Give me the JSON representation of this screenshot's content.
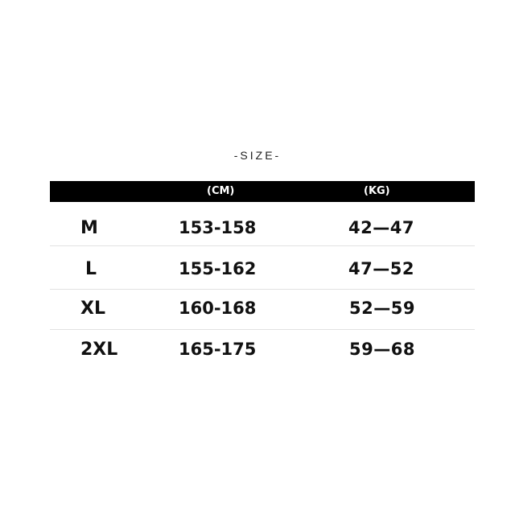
{
  "title": "-SIZE-",
  "header": {
    "size": "",
    "height_unit": "(CM)",
    "weight_unit": "(KG)"
  },
  "rows": [
    {
      "size": "M",
      "height_cm": "153-158",
      "weight_kg": "42—47"
    },
    {
      "size": "L",
      "height_cm": "155-162",
      "weight_kg": "47—52"
    },
    {
      "size": "XL",
      "height_cm": "160-168",
      "weight_kg": "52—59"
    },
    {
      "size": "2XL",
      "height_cm": "165-175",
      "weight_kg": "59—68"
    }
  ],
  "colors": {
    "header_bg": "#000000",
    "header_text": "#ffffff",
    "divider": "#e2e2e2"
  }
}
